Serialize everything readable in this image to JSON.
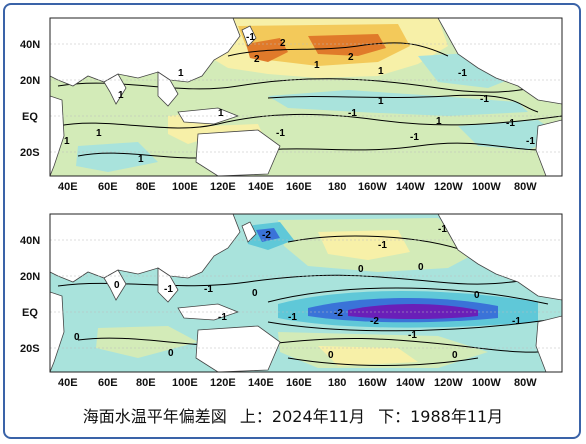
{
  "lat_labels": [
    "40N",
    "20N",
    "EQ",
    "20S"
  ],
  "lon_labels": [
    "40E",
    "60E",
    "80E",
    "100E",
    "120E",
    "140E",
    "160E",
    "180",
    "160W",
    "140W",
    "120W",
    "100W",
    "80W"
  ],
  "panels": [
    {
      "id": "top",
      "contour_labels": [
        "-1",
        "2",
        "2",
        "1",
        "2",
        "1",
        "-1",
        "1",
        "1",
        "1",
        "1",
        "-1",
        "1",
        "-1",
        "1",
        "-1",
        "-1",
        "-1",
        "-1",
        "1",
        "1"
      ]
    },
    {
      "id": "bottom",
      "contour_labels": [
        "-2",
        "-1",
        "-1",
        "0",
        "0",
        "0",
        "-1",
        "-1",
        "0",
        "0",
        "0",
        "-2",
        "-2",
        "-1",
        "-1",
        "-1",
        "-1",
        "0",
        "0",
        "0"
      ]
    }
  ],
  "colors": {
    "land": "#ffffff",
    "positive_1": "#f7f0a8",
    "positive_2": "#f3c95a",
    "positive_3": "#e07a2a",
    "near_zero": "#d3ebb8",
    "negative_1": "#a9e3dc",
    "negative_2": "#5fc8d8",
    "negative_3": "#3a73d8",
    "negative_4": "#6a1fb8",
    "frame": "#3a63a8"
  },
  "caption": {
    "title": "海面水温平年偏差図",
    "top": "上：2024年11月",
    "bottom": "下：1988年11月"
  }
}
